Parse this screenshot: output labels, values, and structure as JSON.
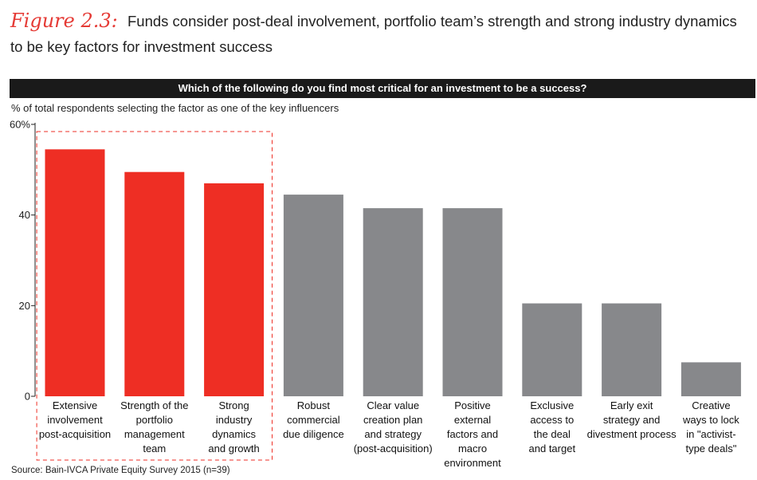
{
  "figure": {
    "label": "Figure 2.3:",
    "title_line1": "Funds consider post-deal involvement, portfolio team’s strength and strong industry dynamics",
    "title_line2": "to be key factors for investment success"
  },
  "question": "Which of the following do you find most critical for an investment to be a success?",
  "subtitle": "% of total respondents selecting the factor as one of the key influencers",
  "source": "Source: Bain-IVCA Private Equity Survey 2015 (n=39)",
  "colors": {
    "highlight": "#ee2e24",
    "default": "#87888b",
    "frame": "#ee2e24"
  },
  "chart_data": {
    "type": "bar",
    "title": "Which of the following do you find most critical for an investment to be a success?",
    "ylabel": "% of total respondents selecting the factor as one of the key influencers",
    "xlabel": "",
    "ylim": [
      0,
      60
    ],
    "yticks": [
      "0",
      "20",
      "40",
      "60%"
    ],
    "ytick_values": [
      0,
      20,
      40,
      60
    ],
    "categories": [
      [
        "Extensive",
        "involvement",
        "post-acquisition"
      ],
      [
        "Strength of the",
        "portfolio",
        "management",
        "team"
      ],
      [
        "Strong",
        "industry",
        "dynamics",
        "and growth"
      ],
      [
        "Robust",
        "commercial",
        "due diligence"
      ],
      [
        "Clear value",
        "creation plan",
        "and strategy",
        "(post-acquisition)"
      ],
      [
        "Positive",
        "external",
        "factors and",
        "macro",
        "environment"
      ],
      [
        "Exclusive",
        "access to",
        "the deal",
        "and target"
      ],
      [
        "Early exit",
        "strategy and",
        "divestment process"
      ],
      [
        "Creative",
        "ways to lock",
        "in \"activist-",
        "type deals\""
      ]
    ],
    "values": [
      54.5,
      49.5,
      47,
      44.5,
      41.5,
      41.5,
      20.5,
      20.5,
      7.5
    ],
    "highlighted": [
      true,
      true,
      true,
      false,
      false,
      false,
      false,
      false,
      false
    ],
    "grid": false,
    "legend": "none"
  }
}
